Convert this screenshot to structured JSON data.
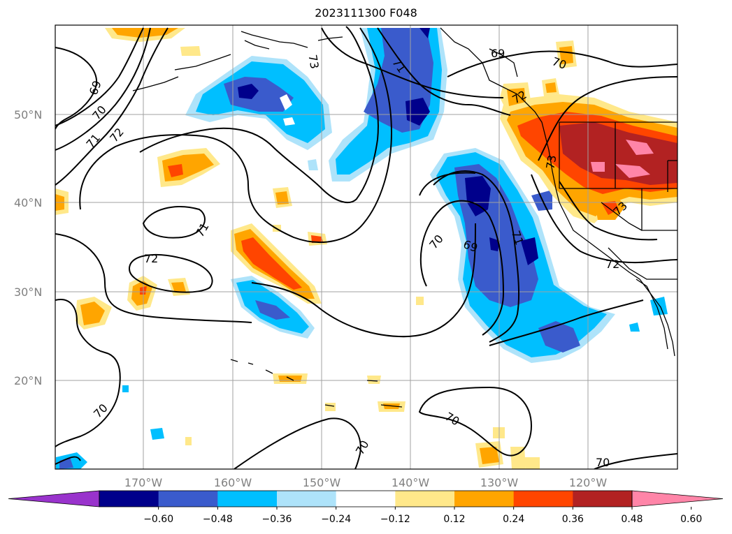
{
  "title": "2023111300 F048",
  "map": {
    "lat_labels": [
      "50°N",
      "40°N",
      "30°N",
      "20°N"
    ],
    "lon_labels": [
      "170°W",
      "160°W",
      "150°W",
      "140°W",
      "130°W",
      "120°W"
    ],
    "contour_labels": [
      "69",
      "70",
      "71",
      "72",
      "73",
      "69",
      "71",
      "71",
      "72",
      "73",
      "70",
      "69",
      "71",
      "72",
      "73",
      "72",
      "70",
      "70",
      "70",
      "70",
      "70"
    ],
    "colors": {
      "land_outline": "#000000",
      "grid": "#a0a0a0"
    }
  },
  "colorbar": {
    "tick_labels": [
      "−0.60",
      "−0.48",
      "−0.36",
      "−0.24",
      "−0.12",
      "0.12",
      "0.24",
      "0.36",
      "0.48",
      "0.60"
    ],
    "colors": [
      "#9933cc",
      "#00008b",
      "#3a5bcc",
      "#00bfff",
      "#aee3fa",
      "#ffffff",
      "#ffe88a",
      "#ffa500",
      "#ff4500",
      "#b22222",
      "#ff85a8"
    ]
  }
}
